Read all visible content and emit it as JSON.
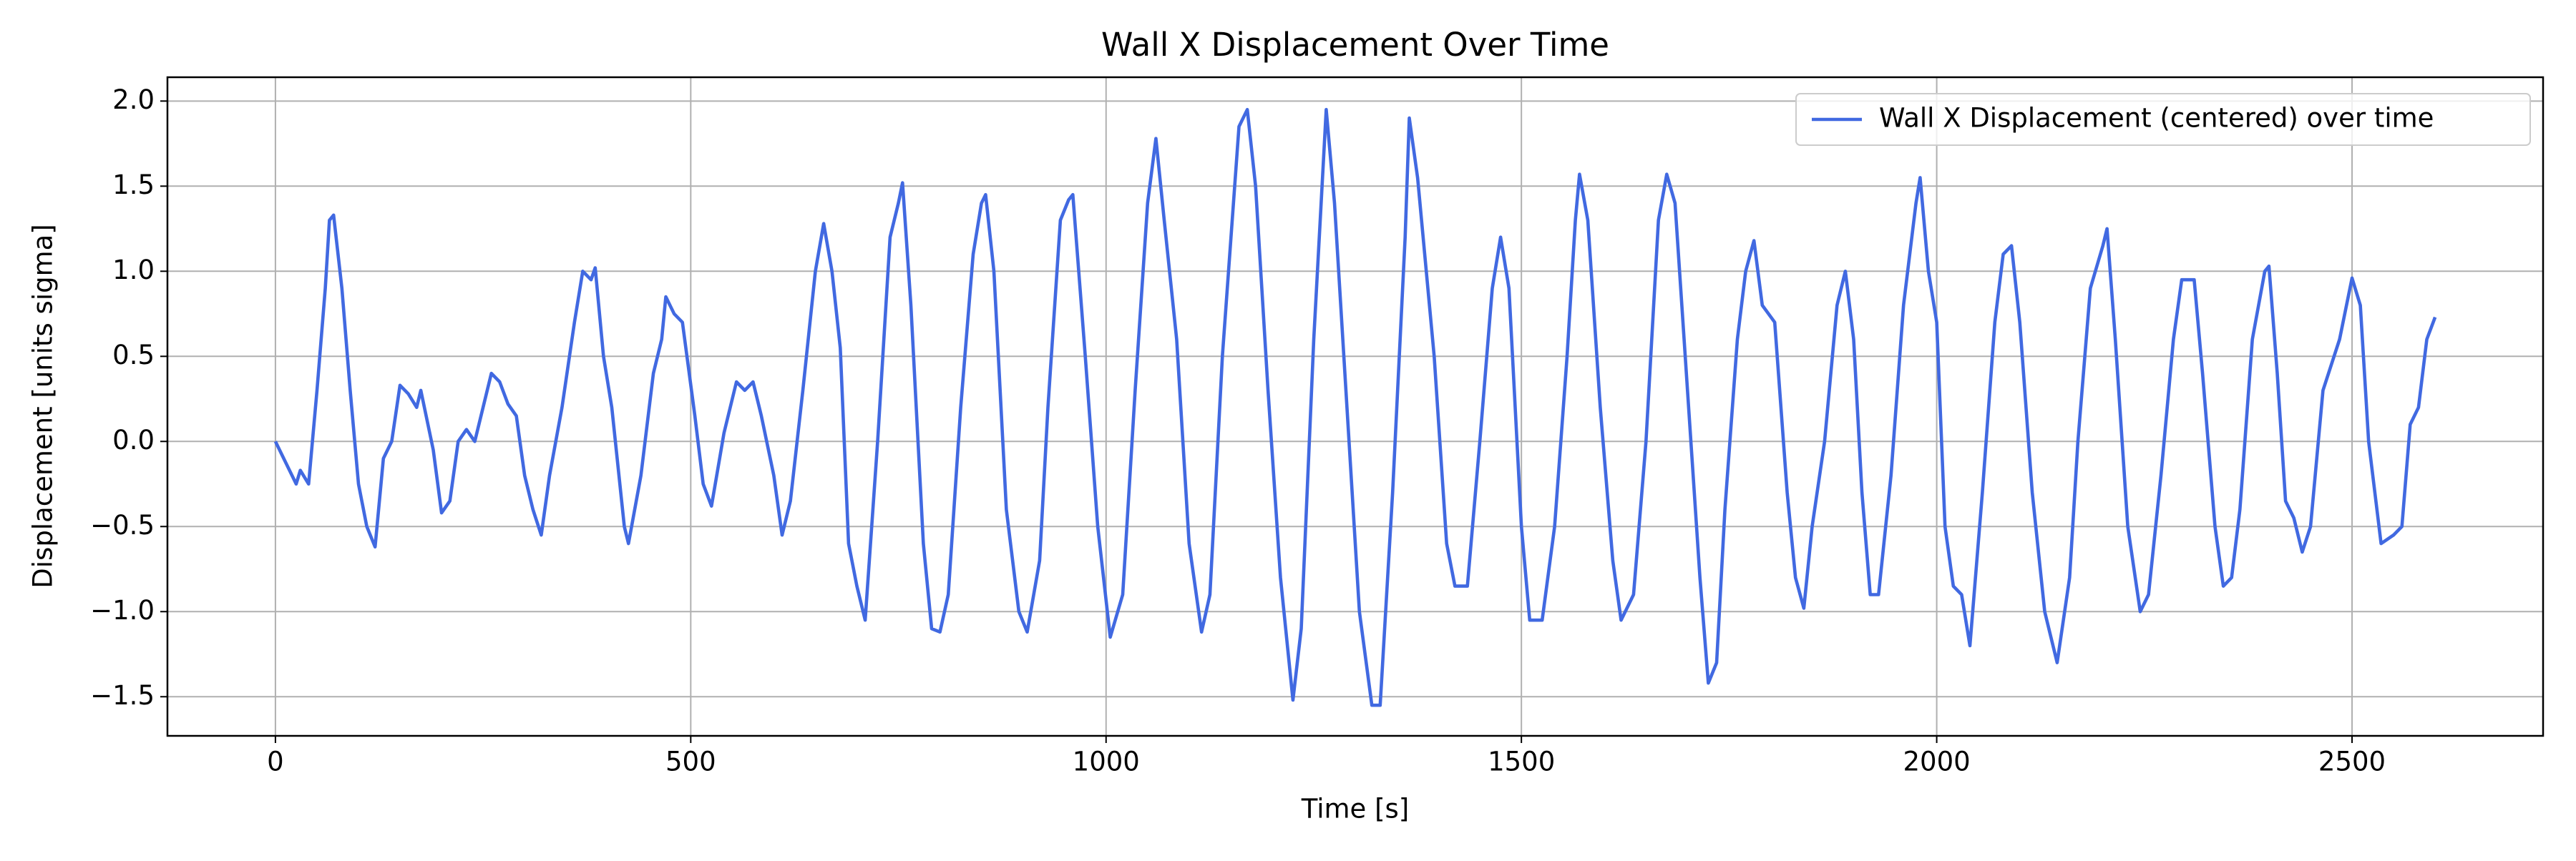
{
  "chart_data": {
    "type": "line",
    "title": "Wall X Displacement Over Time",
    "xlabel": "Time [s]",
    "ylabel": "Displacement [units sigma]",
    "x": [
      0,
      15,
      25,
      30,
      40,
      50,
      60,
      65,
      70,
      80,
      90,
      100,
      110,
      120,
      130,
      140,
      150,
      160,
      170,
      175,
      190,
      200,
      210,
      220,
      230,
      240,
      250,
      260,
      270,
      280,
      290,
      300,
      310,
      320,
      330,
      345,
      360,
      370,
      380,
      385,
      395,
      405,
      420,
      425,
      440,
      455,
      465,
      470,
      480,
      490,
      505,
      515,
      525,
      540,
      555,
      565,
      575,
      585,
      600,
      610,
      620,
      635,
      650,
      660,
      670,
      680,
      690,
      700,
      710,
      725,
      740,
      750,
      755,
      765,
      780,
      790,
      800,
      810,
      825,
      840,
      850,
      855,
      865,
      880,
      895,
      905,
      920,
      930,
      945,
      955,
      960,
      975,
      990,
      1005,
      1020,
      1035,
      1050,
      1060,
      1070,
      1085,
      1100,
      1115,
      1125,
      1140,
      1160,
      1170,
      1180,
      1195,
      1210,
      1225,
      1235,
      1250,
      1265,
      1275,
      1290,
      1305,
      1320,
      1330,
      1345,
      1360,
      1365,
      1375,
      1395,
      1410,
      1420,
      1435,
      1450,
      1465,
      1475,
      1485,
      1500,
      1510,
      1525,
      1540,
      1555,
      1565,
      1570,
      1580,
      1595,
      1610,
      1620,
      1635,
      1650,
      1665,
      1675,
      1685,
      1700,
      1715,
      1725,
      1735,
      1745,
      1760,
      1770,
      1780,
      1790,
      1805,
      1820,
      1830,
      1840,
      1850,
      1865,
      1880,
      1890,
      1900,
      1910,
      1920,
      1930,
      1945,
      1960,
      1975,
      1980,
      1990,
      2000,
      2010,
      2020,
      2030,
      2040,
      2055,
      2070,
      2080,
      2090,
      2100,
      2115,
      2130,
      2145,
      2160,
      2170,
      2185,
      2200,
      2205,
      2215,
      2230,
      2245,
      2255,
      2270,
      2285,
      2295,
      2310,
      2320,
      2335,
      2345,
      2355,
      2365,
      2380,
      2395,
      2400,
      2410,
      2420,
      2430,
      2440,
      2450,
      2465,
      2485,
      2500,
      2510,
      2520,
      2535,
      2550,
      2560,
      2570,
      2580,
      2590,
      2600
    ],
    "series": [
      {
        "name": "Wall X Displacement (centered) over time",
        "color": "#4169e1",
        "values": [
          0.0,
          -0.15,
          -0.25,
          -0.17,
          -0.25,
          0.3,
          0.9,
          1.3,
          1.33,
          0.9,
          0.3,
          -0.25,
          -0.5,
          -0.62,
          -0.1,
          0.0,
          0.33,
          0.28,
          0.2,
          0.3,
          -0.05,
          -0.42,
          -0.35,
          0.0,
          0.07,
          0.0,
          0.2,
          0.4,
          0.35,
          0.22,
          0.15,
          -0.2,
          -0.4,
          -0.55,
          -0.2,
          0.2,
          0.7,
          1.0,
          0.95,
          1.02,
          0.5,
          0.2,
          -0.5,
          -0.6,
          -0.2,
          0.4,
          0.6,
          0.85,
          0.75,
          0.7,
          0.15,
          -0.25,
          -0.38,
          0.05,
          0.35,
          0.3,
          0.35,
          0.15,
          -0.2,
          -0.55,
          -0.35,
          0.3,
          1.0,
          1.28,
          1.0,
          0.55,
          -0.6,
          -0.85,
          -1.05,
          0.0,
          1.2,
          1.4,
          1.52,
          0.8,
          -0.6,
          -1.1,
          -1.12,
          -0.9,
          0.2,
          1.1,
          1.4,
          1.45,
          1.0,
          -0.4,
          -1.0,
          -1.12,
          -0.7,
          0.2,
          1.3,
          1.42,
          1.45,
          0.5,
          -0.5,
          -1.15,
          -0.9,
          0.3,
          1.4,
          1.78,
          1.3,
          0.6,
          -0.6,
          -1.12,
          -0.9,
          0.5,
          1.85,
          1.95,
          1.5,
          0.3,
          -0.8,
          -1.52,
          -1.1,
          0.6,
          1.95,
          1.4,
          0.2,
          -1.0,
          -1.55,
          -1.55,
          -0.3,
          1.2,
          1.9,
          1.55,
          0.5,
          -0.6,
          -0.85,
          -0.85,
          0.0,
          0.9,
          1.2,
          0.9,
          -0.5,
          -1.05,
          -1.05,
          -0.5,
          0.5,
          1.3,
          1.57,
          1.3,
          0.2,
          -0.7,
          -1.05,
          -0.9,
          0.0,
          1.3,
          1.57,
          1.4,
          0.3,
          -0.8,
          -1.42,
          -1.3,
          -0.4,
          0.6,
          1.0,
          1.18,
          0.8,
          0.7,
          -0.3,
          -0.8,
          -0.98,
          -0.5,
          0.0,
          0.8,
          1.0,
          0.6,
          -0.3,
          -0.9,
          -0.9,
          -0.2,
          0.8,
          1.4,
          1.55,
          1.0,
          0.7,
          -0.5,
          -0.85,
          -0.9,
          -1.2,
          -0.3,
          0.7,
          1.1,
          1.15,
          0.7,
          -0.3,
          -1.0,
          -1.3,
          -0.8,
          0.0,
          0.9,
          1.15,
          1.25,
          0.6,
          -0.5,
          -1.0,
          -0.9,
          -0.2,
          0.6,
          0.95,
          0.95,
          0.4,
          -0.5,
          -0.85,
          -0.8,
          -0.4,
          0.6,
          1.0,
          1.03,
          0.4,
          -0.35,
          -0.45,
          -0.65,
          -0.5,
          0.3,
          0.6,
          0.96,
          0.8,
          0.0,
          -0.6,
          -0.55,
          -0.5,
          0.1,
          0.2,
          0.6,
          0.73
        ]
      }
    ],
    "xlim": [
      -130,
      2730
    ],
    "xticks": [
      0,
      500,
      1000,
      1500,
      2000,
      2500
    ],
    "ylim": [
      -1.73,
      2.14
    ],
    "yticks": [
      {
        "value": -1.5,
        "label": "−1.5"
      },
      {
        "value": -1.0,
        "label": "−1.0"
      },
      {
        "value": -0.5,
        "label": "−0.5"
      },
      {
        "value": 0.0,
        "label": "0.0"
      },
      0.5,
      {
        "value": 1.0,
        "label": "1.0"
      },
      1.5,
      {
        "value": 2.0,
        "label": "2.0"
      }
    ],
    "grid": true,
    "legend": "upper right"
  }
}
